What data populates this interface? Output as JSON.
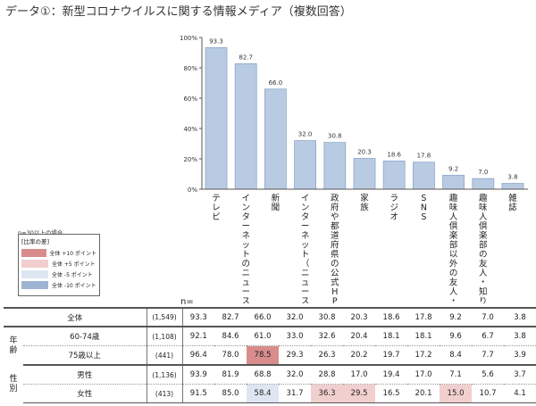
{
  "page": {
    "title": "データ①：新型コロナウイルスに関する情報メディア（複数回答）",
    "n_note": "n=30以上の場合",
    "n_label": "n="
  },
  "legend": {
    "title": "[比率の差]",
    "items": [
      {
        "label": "全体 +10 ポイント",
        "color": "#d98c8c"
      },
      {
        "label": "全体 +5 ポイント",
        "color": "#f2cfcf"
      },
      {
        "label": "全体 -5 ポイント",
        "color": "#dde6f1"
      },
      {
        "label": "全体 -10 ポイント",
        "color": "#9fb4d3"
      }
    ]
  },
  "chart_data": {
    "type": "bar",
    "categories": [
      "テレビ",
      "インターネットのニュース",
      "新聞",
      "インターネット（ニュースを除く）",
      "政府や都道府県の公式HP",
      "家族",
      "ラジオ",
      "SNS",
      "趣味人倶楽部以外の友人・知り合い",
      "趣味人倶楽部の友人・知り合い",
      "雑誌"
    ],
    "values": [
      93.3,
      82.7,
      66.0,
      32.0,
      30.8,
      20.3,
      18.6,
      17.8,
      9.2,
      7.0,
      3.8
    ],
    "value_labels": [
      "93.3",
      "82.7",
      "66.0",
      "32.0",
      "30.8",
      "20.3",
      "18.6",
      "17.8",
      "9.2",
      "7.0",
      "3.8"
    ],
    "yticks": [
      "100%",
      "80%",
      "60%",
      "40%",
      "20%",
      "0%"
    ],
    "ylim": [
      0,
      100
    ],
    "bar_color": "#b8cbe3",
    "bar_edge": "#8ea6c8"
  },
  "table": {
    "rows": [
      {
        "group": "",
        "label": "全体",
        "n": "(1,549)",
        "values": [
          "93.3",
          "82.7",
          "66.0",
          "32.0",
          "30.8",
          "20.3",
          "18.6",
          "17.8",
          "9.2",
          "7.0",
          "3.8"
        ],
        "highlights": [
          null,
          null,
          null,
          null,
          null,
          null,
          null,
          null,
          null,
          null,
          null
        ]
      },
      {
        "group": "年齢",
        "label": "60-74歳",
        "n": "(1,108)",
        "values": [
          "92.1",
          "84.6",
          "61.0",
          "33.0",
          "32.6",
          "20.4",
          "18.1",
          "18.1",
          "9.6",
          "6.7",
          "3.8"
        ],
        "highlights": [
          null,
          null,
          null,
          null,
          null,
          null,
          null,
          null,
          null,
          null,
          null
        ]
      },
      {
        "group": "",
        "label": "75歳以上",
        "n": "(441)",
        "values": [
          "96.4",
          "78.0",
          "78.5",
          "29.3",
          "26.3",
          "20.2",
          "19.7",
          "17.2",
          "8.4",
          "7.7",
          "3.9"
        ],
        "highlights": [
          null,
          null,
          "#d98c8c",
          null,
          null,
          null,
          null,
          null,
          null,
          null,
          null
        ]
      },
      {
        "group": "性別",
        "label": "男性",
        "n": "(1,136)",
        "values": [
          "93.9",
          "81.9",
          "68.8",
          "32.0",
          "28.8",
          "17.0",
          "19.4",
          "17.0",
          "7.1",
          "5.6",
          "3.7"
        ],
        "highlights": [
          null,
          null,
          null,
          null,
          null,
          null,
          null,
          null,
          null,
          null,
          null
        ]
      },
      {
        "group": "",
        "label": "女性",
        "n": "(413)",
        "values": [
          "91.5",
          "85.0",
          "58.4",
          "31.7",
          "36.3",
          "29.5",
          "16.5",
          "20.1",
          "15.0",
          "10.7",
          "4.1"
        ],
        "highlights": [
          null,
          null,
          "#dde6f1",
          null,
          "#f2cfcf",
          "#f2cfcf",
          null,
          null,
          "#f2cfcf",
          null,
          null
        ]
      }
    ]
  }
}
